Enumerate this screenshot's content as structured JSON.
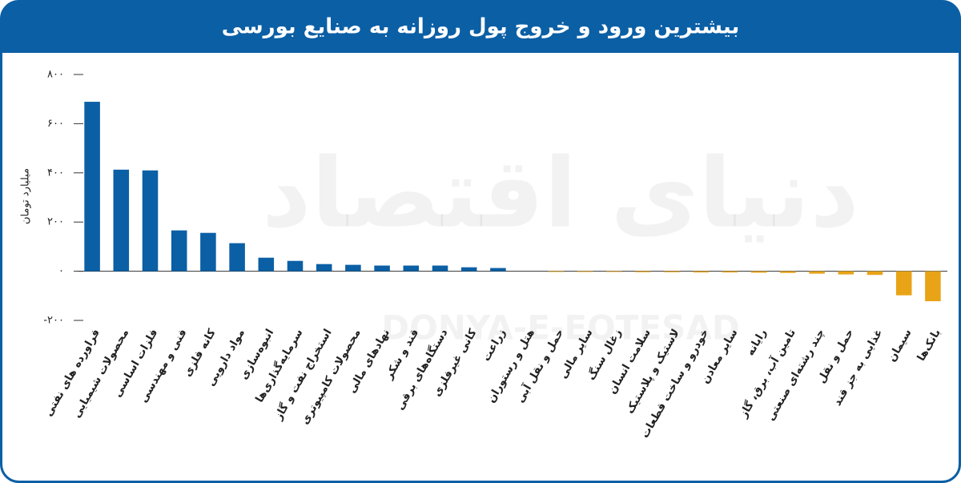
{
  "chart_data": {
    "type": "bar",
    "title": "بیشترین ورود و خروج پول روزانه به صنایع بورسی",
    "y_label": "میلیارد تومان",
    "watermark": "دنیای اقتصاد",
    "watermark_latin": "DONYA-E-EQTESAD",
    "categories": [
      "فراورده های نفتی",
      "محصولات شیمیایی",
      "فلزات اساسی",
      "فنی و مهندسی",
      "کانه فلزی",
      "مواد دارویی",
      "انبوه‌سازی",
      "سرمایه‌گذاری‌ها",
      "استخراج نفت و گاز",
      "محصولات کامپیوتری",
      "نهادهای مالی",
      "قند و شکر",
      "دستگاه‌های برقی",
      "کانی غیرفلزی",
      "زراعت",
      "هتل و رستوران",
      "حمل و نقل آبی",
      "سایر مالی",
      "زغال سنگ",
      "سلامت انسان",
      "لاستیک و پلاستیک",
      "خودرو و ساخت قطعات",
      "سایر معادن",
      "رایانه",
      "تامین آب، برق، گاز",
      "چند رشته‌ای صنعتی",
      "حمل و نقل",
      "غذایی به جز قند",
      "سیمان",
      "بانک‌ها"
    ],
    "values": [
      689,
      413,
      410,
      166,
      156,
      114,
      55,
      42,
      29,
      26,
      23,
      23,
      23,
      16,
      13,
      0,
      -3,
      -3,
      -3,
      -4,
      -4,
      -5,
      -5,
      -6,
      -7,
      -10,
      -13,
      -15,
      -98,
      -122
    ],
    "color_positive": "#0b5fa5",
    "color_negative": "#e8a317",
    "ylim": [
      -200,
      800
    ],
    "yticks": [
      {
        "value": -200,
        "label": "-۲۰۰"
      },
      {
        "value": 0,
        "label": "۰"
      },
      {
        "value": 200,
        "label": "۲۰۰"
      },
      {
        "value": 400,
        "label": "۴۰۰"
      },
      {
        "value": 600,
        "label": "۶۰۰"
      },
      {
        "value": 800,
        "label": "۸۰۰"
      }
    ],
    "grid": false
  }
}
